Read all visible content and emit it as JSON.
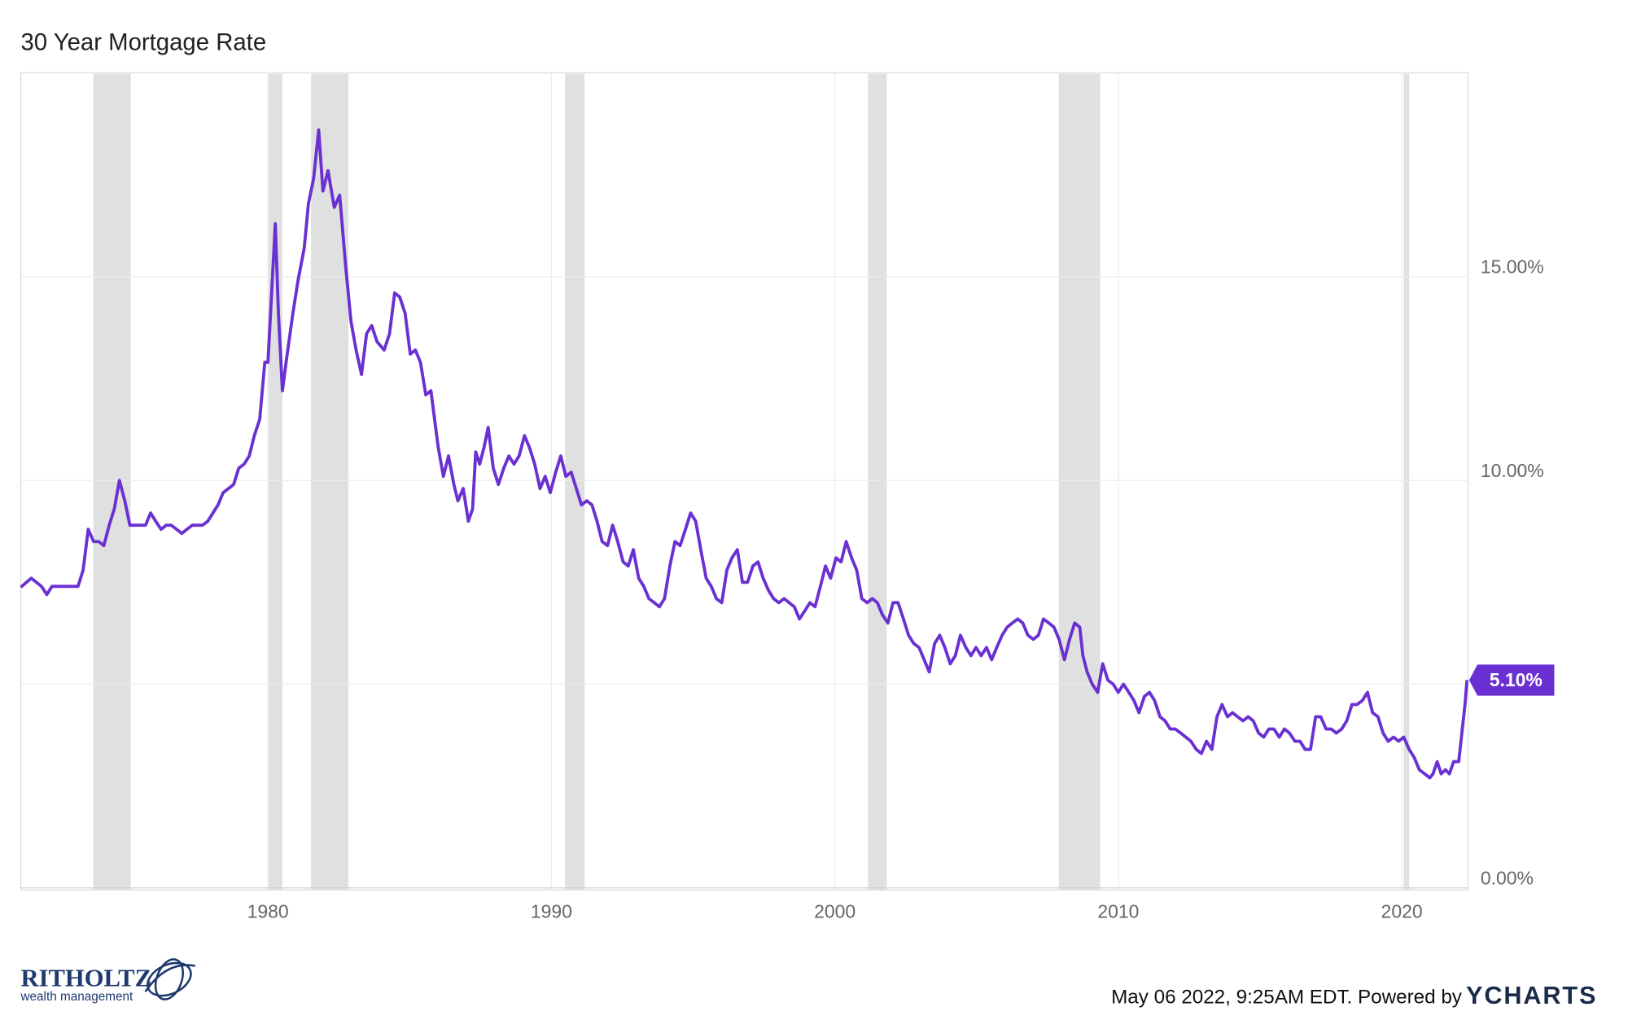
{
  "chart_data": {
    "type": "line",
    "title": "30 Year Mortgage Rate",
    "color": "#6a30d2",
    "xlim": [
      1971.28,
      2022.34
    ],
    "xticks": [
      1980,
      1990,
      2000,
      2010,
      2020
    ],
    "ylim": [
      0,
      20
    ],
    "yticks": [
      {
        "value": 0,
        "label": "0.00%"
      },
      {
        "value": 5,
        "label": "5.00%"
      },
      {
        "value": 10,
        "label": "10.00%"
      },
      {
        "value": 15,
        "label": "15.00%"
      }
    ],
    "grid": true,
    "shaded_x_ranges": [
      [
        1973.84,
        1975.16
      ],
      [
        1980.0,
        1980.51
      ],
      [
        1981.52,
        1982.84
      ],
      [
        1990.48,
        1991.17
      ],
      [
        2001.17,
        2001.83
      ],
      [
        2007.9,
        2009.36
      ],
      [
        2020.07,
        2020.26
      ]
    ],
    "shade_color": "#e0e0e0",
    "x": [
      1971.28,
      1971.65,
      1972.01,
      1972.2,
      1972.38,
      1972.75,
      1973.3,
      1973.48,
      1973.66,
      1973.85,
      1974.03,
      1974.21,
      1974.4,
      1974.58,
      1974.76,
      1974.95,
      1975.13,
      1975.31,
      1975.68,
      1975.86,
      1976.04,
      1976.23,
      1976.41,
      1976.59,
      1976.78,
      1976.96,
      1977.14,
      1977.33,
      1977.51,
      1977.69,
      1977.88,
      1978.06,
      1978.24,
      1978.42,
      1978.61,
      1978.79,
      1978.97,
      1979.16,
      1979.34,
      1979.52,
      1979.71,
      1979.89,
      1980,
      1980.26,
      1980.37,
      1980.51,
      1980.66,
      1980.88,
      1981.06,
      1981.28,
      1981.43,
      1981.61,
      1981.79,
      1981.94,
      1982.12,
      1982.34,
      1982.53,
      1982.75,
      1982.93,
      1983.11,
      1983.3,
      1983.48,
      1983.66,
      1983.85,
      1984.1,
      1984.29,
      1984.47,
      1984.65,
      1984.84,
      1985.02,
      1985.2,
      1985.38,
      1985.57,
      1985.75,
      1985.86,
      1986.01,
      1986.19,
      1986.37,
      1986.56,
      1986.7,
      1986.89,
      1987.07,
      1987.22,
      1987.33,
      1987.47,
      1987.62,
      1987.77,
      1987.95,
      1988.13,
      1988.32,
      1988.5,
      1988.68,
      1988.86,
      1989.05,
      1989.23,
      1989.41,
      1989.6,
      1989.78,
      1989.96,
      1990.15,
      1990.33,
      1990.51,
      1990.7,
      1990.88,
      1991.06,
      1991.25,
      1991.43,
      1991.61,
      1991.79,
      1991.98,
      1992.16,
      1992.34,
      1992.53,
      1992.71,
      1992.89,
      1993.08,
      1993.26,
      1993.44,
      1993.63,
      1993.81,
      1993.99,
      1994.18,
      1994.36,
      1994.54,
      1994.73,
      1994.91,
      1995.09,
      1995.27,
      1995.46,
      1995.64,
      1995.82,
      1996.01,
      1996.19,
      1996.37,
      1996.56,
      1996.74,
      1996.92,
      1997.11,
      1997.29,
      1997.47,
      1997.66,
      1997.84,
      1998.02,
      1998.21,
      1998.39,
      1998.57,
      1998.75,
      1998.94,
      1999.12,
      1999.3,
      1999.49,
      1999.67,
      1999.85,
      2000.04,
      2000.22,
      2000.4,
      2000.59,
      2000.77,
      2000.95,
      2001.14,
      2001.32,
      2001.5,
      2001.68,
      2001.87,
      2002.05,
      2002.23,
      2002.42,
      2002.6,
      2002.78,
      2002.97,
      2003.15,
      2003.33,
      2003.52,
      2003.7,
      2003.88,
      2004.07,
      2004.25,
      2004.43,
      2004.62,
      2004.8,
      2004.98,
      2005.16,
      2005.35,
      2005.53,
      2005.71,
      2005.9,
      2006.08,
      2006.26,
      2006.45,
      2006.63,
      2006.81,
      2007,
      2007.18,
      2007.36,
      2007.55,
      2007.73,
      2007.91,
      2008.1,
      2008.28,
      2008.46,
      2008.64,
      2008.75,
      2008.9,
      2009.08,
      2009.27,
      2009.45,
      2009.63,
      2009.82,
      2010,
      2010.18,
      2010.37,
      2010.55,
      2010.73,
      2010.92,
      2011.1,
      2011.28,
      2011.47,
      2011.65,
      2011.83,
      2012.01,
      2012.2,
      2012.38,
      2012.56,
      2012.75,
      2012.93,
      2013.11,
      2013.3,
      2013.48,
      2013.66,
      2013.85,
      2014.03,
      2014.21,
      2014.4,
      2014.58,
      2014.76,
      2014.95,
      2015.13,
      2015.31,
      2015.49,
      2015.68,
      2015.86,
      2016.04,
      2016.23,
      2016.41,
      2016.59,
      2016.78,
      2016.96,
      2017.14,
      2017.33,
      2017.51,
      2017.69,
      2017.88,
      2018.06,
      2018.24,
      2018.42,
      2018.61,
      2018.79,
      2018.97,
      2019.16,
      2019.34,
      2019.52,
      2019.71,
      2019.89,
      2020.07,
      2020.26,
      2020.44,
      2020.62,
      2020.81,
      2020.99,
      2021.1,
      2021.25,
      2021.39,
      2021.54,
      2021.68,
      2021.83,
      2022.01,
      2022.12,
      2022.23,
      2022.3
    ],
    "values": [
      7.38,
      7.6,
      7.4,
      7.2,
      7.4,
      7.4,
      7.4,
      7.8,
      8.8,
      8.5,
      8.5,
      8.4,
      8.9,
      9.3,
      10.0,
      9.5,
      8.9,
      8.9,
      8.9,
      9.2,
      9.0,
      8.8,
      8.9,
      8.9,
      8.8,
      8.7,
      8.8,
      8.9,
      8.9,
      8.9,
      9.0,
      9.2,
      9.4,
      9.7,
      9.8,
      9.9,
      10.3,
      10.4,
      10.6,
      11.1,
      11.5,
      12.9,
      12.9,
      16.3,
      14.1,
      12.2,
      13.0,
      14.1,
      14.9,
      15.7,
      16.8,
      17.4,
      18.6,
      17.1,
      17.6,
      16.7,
      17.0,
      15.2,
      13.9,
      13.2,
      12.6,
      13.6,
      13.8,
      13.4,
      13.2,
      13.6,
      14.6,
      14.5,
      14.1,
      13.1,
      13.2,
      12.9,
      12.1,
      12.2,
      11.6,
      10.8,
      10.1,
      10.6,
      9.9,
      9.5,
      9.8,
      9.0,
      9.3,
      10.7,
      10.4,
      10.8,
      11.3,
      10.3,
      9.9,
      10.3,
      10.6,
      10.4,
      10.6,
      11.1,
      10.8,
      10.4,
      9.8,
      10.1,
      9.7,
      10.2,
      10.6,
      10.1,
      10.2,
      9.8,
      9.4,
      9.5,
      9.4,
      9.0,
      8.5,
      8.4,
      8.9,
      8.5,
      8.0,
      7.9,
      8.3,
      7.6,
      7.4,
      7.1,
      7.0,
      6.9,
      7.1,
      7.9,
      8.5,
      8.4,
      8.8,
      9.2,
      9.0,
      8.3,
      7.6,
      7.4,
      7.1,
      7.0,
      7.8,
      8.1,
      8.3,
      7.5,
      7.5,
      7.9,
      8.0,
      7.6,
      7.3,
      7.1,
      7.0,
      7.1,
      7.0,
      6.9,
      6.6,
      6.8,
      7.0,
      6.9,
      7.4,
      7.9,
      7.6,
      8.1,
      8.0,
      8.5,
      8.1,
      7.8,
      7.1,
      7.0,
      7.1,
      7.0,
      6.7,
      6.5,
      7.0,
      7.0,
      6.6,
      6.2,
      6.0,
      5.9,
      5.6,
      5.3,
      6.0,
      6.2,
      5.9,
      5.5,
      5.7,
      6.2,
      5.9,
      5.7,
      5.9,
      5.7,
      5.9,
      5.6,
      5.9,
      6.2,
      6.4,
      6.5,
      6.6,
      6.5,
      6.2,
      6.1,
      6.2,
      6.6,
      6.5,
      6.4,
      6.1,
      5.6,
      6.1,
      6.5,
      6.4,
      5.7,
      5.3,
      5.0,
      4.8,
      5.5,
      5.1,
      5.0,
      4.8,
      5.0,
      4.8,
      4.6,
      4.3,
      4.7,
      4.8,
      4.6,
      4.2,
      4.1,
      3.9,
      3.9,
      3.8,
      3.7,
      3.6,
      3.4,
      3.3,
      3.6,
      3.4,
      4.2,
      4.5,
      4.2,
      4.3,
      4.2,
      4.1,
      4.2,
      4.1,
      3.8,
      3.7,
      3.9,
      3.9,
      3.7,
      3.9,
      3.8,
      3.6,
      3.6,
      3.4,
      3.4,
      4.2,
      4.2,
      3.9,
      3.9,
      3.8,
      3.9,
      4.1,
      4.5,
      4.5,
      4.6,
      4.8,
      4.3,
      4.2,
      3.8,
      3.6,
      3.7,
      3.6,
      3.7,
      3.4,
      3.2,
      2.9,
      2.8,
      2.7,
      2.8,
      3.1,
      2.8,
      2.9,
      2.8,
      3.1,
      3.1,
      3.8,
      4.5,
      5.1
    ],
    "end_label": {
      "value": 5.1,
      "label": "5.10%"
    }
  },
  "footer": {
    "logo": "RITHOLTZ",
    "logo_sub": "wealth management",
    "timestamp": "May 06 2022, 9:25AM EDT. Powered by",
    "brand": "YCHARTS"
  }
}
